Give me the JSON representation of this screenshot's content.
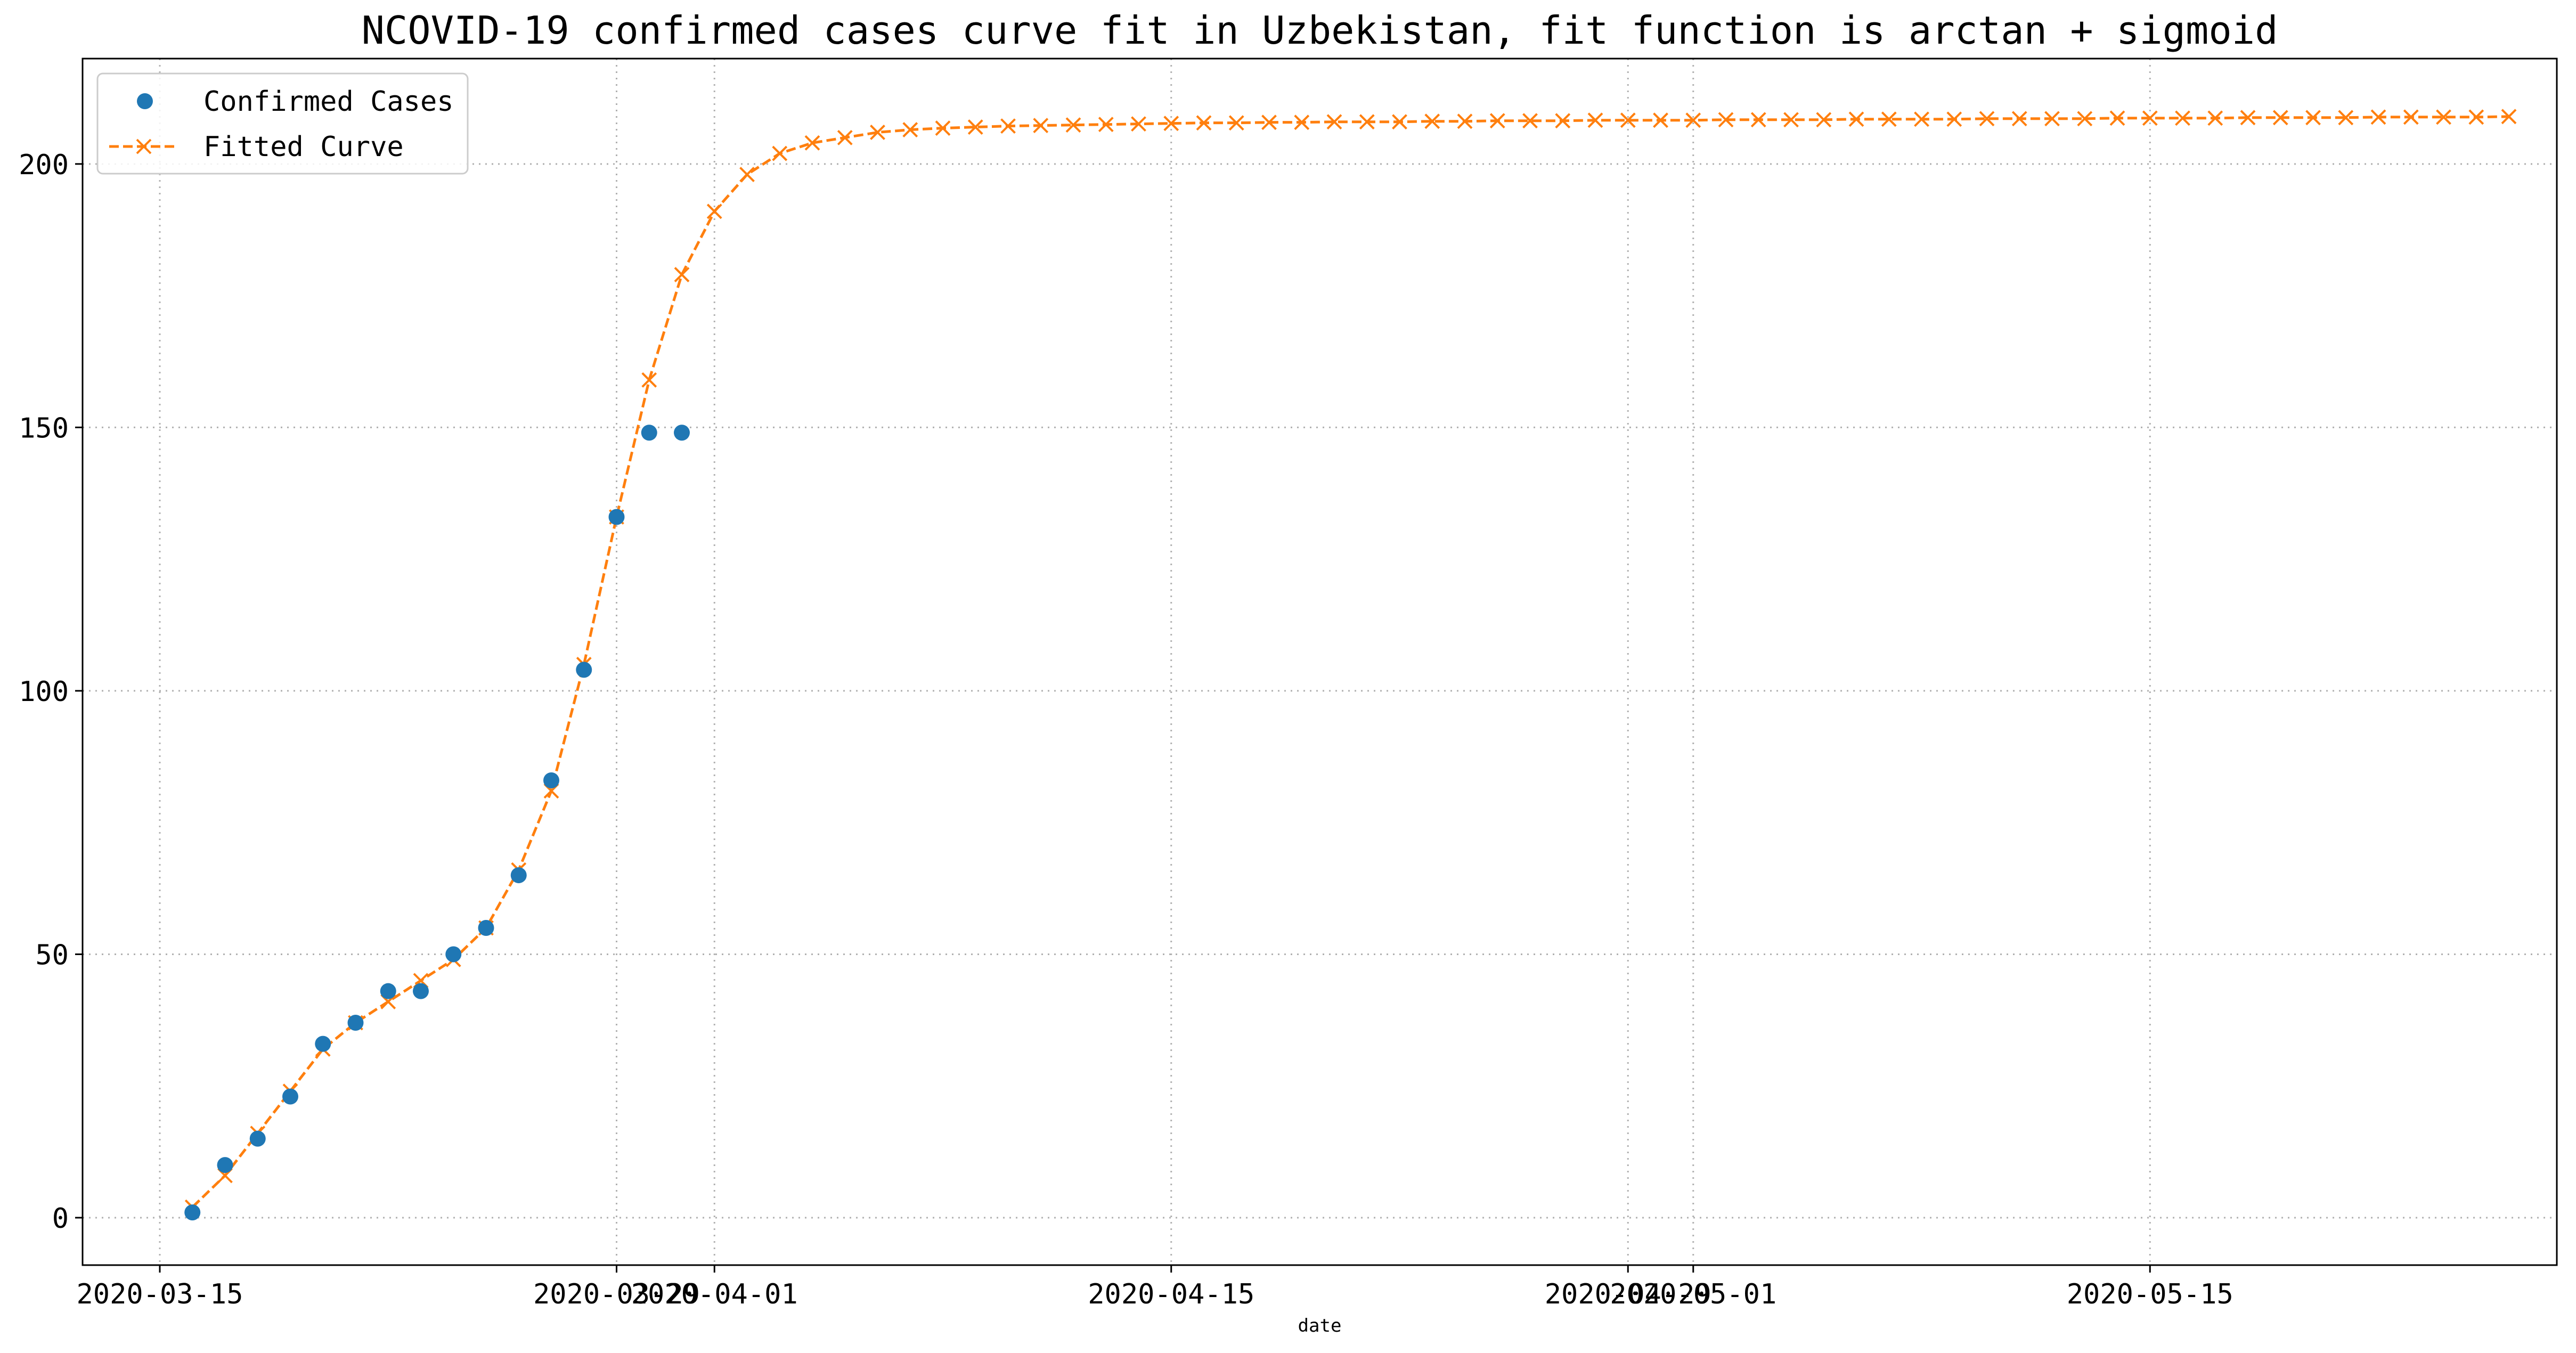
{
  "chart_data": {
    "type": "line",
    "title": "NCOVID-19 confirmed cases curve fit in Uzbekistan, fit function is arctan + sigmoid",
    "xlabel": "date",
    "ylabel": "",
    "x_tick_labels": [
      "2020-03-15",
      "2020-03-29",
      "2020-04-01",
      "2020-04-15",
      "2020-04-29",
      "2020-05-01",
      "2020-05-15"
    ],
    "y_ticks": [
      0,
      50,
      100,
      150,
      200
    ],
    "ylim": [
      -9,
      220
    ],
    "grid": true,
    "legend_position": "upper-left",
    "legend": [
      "Confirmed Cases",
      "Fitted Curve"
    ],
    "series": [
      {
        "name": "Confirmed Cases",
        "marker": "circle",
        "color": "#1f77b4",
        "x": [
          "2020-03-16",
          "2020-03-17",
          "2020-03-18",
          "2020-03-19",
          "2020-03-20",
          "2020-03-21",
          "2020-03-22",
          "2020-03-23",
          "2020-03-24",
          "2020-03-25",
          "2020-03-26",
          "2020-03-27",
          "2020-03-28",
          "2020-03-29",
          "2020-03-30",
          "2020-03-31"
        ],
        "values": [
          1,
          10,
          15,
          23,
          33,
          37,
          43,
          43,
          50,
          55,
          65,
          83,
          104,
          133,
          149,
          149
        ]
      },
      {
        "name": "Fitted Curve",
        "marker": "x",
        "line": "dashed",
        "color": "#ff7f0e",
        "x_start": "2020-03-16",
        "x_step_days": 1,
        "values": [
          2,
          8,
          16,
          24,
          32,
          37,
          41,
          45,
          49,
          55,
          66,
          81,
          105,
          133,
          159,
          179,
          191,
          198,
          202,
          204,
          205,
          206,
          206.5,
          206.8,
          207,
          207.2,
          207.3,
          207.4,
          207.5,
          207.6,
          207.7,
          207.8,
          207.8,
          207.9,
          207.9,
          208,
          208,
          208,
          208.1,
          208.1,
          208.2,
          208.2,
          208.2,
          208.3,
          208.3,
          208.3,
          208.3,
          208.4,
          208.4,
          208.4,
          208.4,
          208.5,
          208.5,
          208.5,
          208.5,
          208.6,
          208.6,
          208.6,
          208.6,
          208.7,
          208.7,
          208.7,
          208.7,
          208.8,
          208.8,
          208.8,
          208.8,
          208.9,
          208.9,
          208.9,
          208.9,
          209
        ]
      }
    ]
  }
}
